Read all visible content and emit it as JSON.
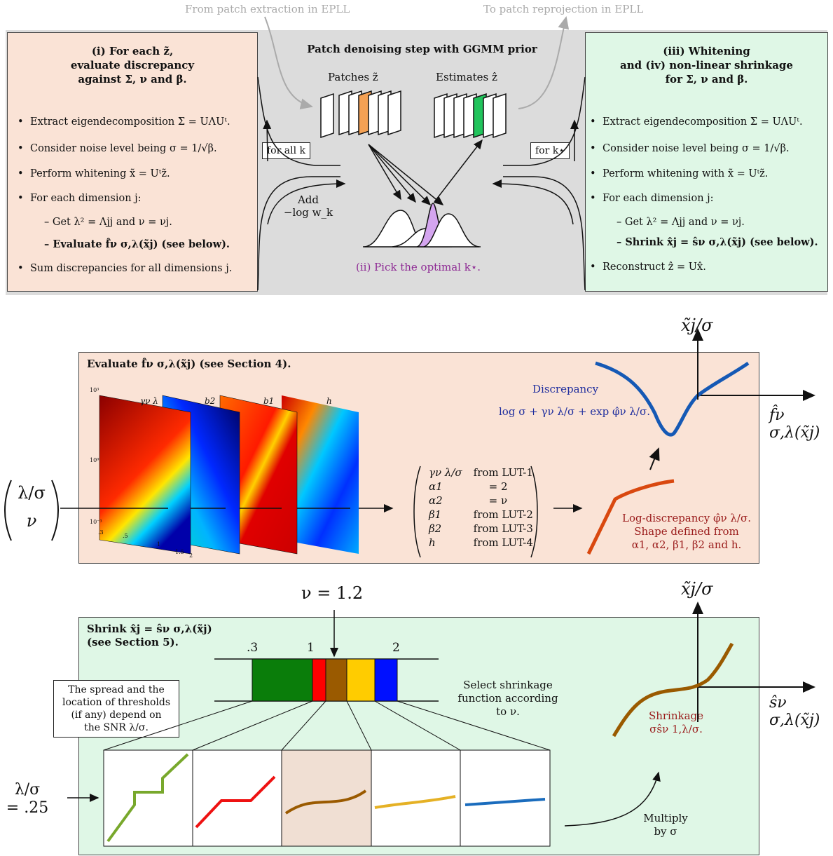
{
  "top": {
    "from_label": "From patch extraction in EPLL",
    "to_label": "To patch reprojection in EPLL",
    "center_title": "Patch denoising step with GGMM prior",
    "patches_label": "Patches z̃",
    "estimates_label": "Estimates ẑ",
    "for_all_k": "for all k",
    "for_k_star": "for k⋆",
    "add_label_1": "Add",
    "add_label_2": "−log w_k",
    "pick_optimal": "(ii) Pick the optimal k⋆."
  },
  "left_panel": {
    "heading": [
      "(i) For each z̃,",
      "evaluate discrepancy",
      "against Σ, ν and β."
    ],
    "bullets": [
      "Extract eigendecomposition Σ = UΛUᵗ.",
      "Consider noise level being σ = 1/√β.",
      "Perform whitening x̃ = Uᵗz̃.",
      "For each dimension j:"
    ],
    "sub_bullets": [
      "Get λ² = Λjj and ν = νj.",
      "Evaluate f̂ν σ,λ(x̃j) (see below)."
    ],
    "last_bullet": "Sum discrepancies for all dimensions j."
  },
  "right_panel": {
    "heading": [
      "(iii) Whitening",
      "and (iv) non-linear shrinkage",
      "for Σ, ν and β."
    ],
    "bullets": [
      "Extract eigendecomposition Σ = UΛUᵗ.",
      "Consider noise level being σ = 1/√β.",
      "Perform whitening with x̃ = Uᵗz̃.",
      "For each dimension j:"
    ],
    "sub_bullets": [
      "Get λ² = Λjj and ν = νj.",
      "Shrink x̂j = ŝν σ,λ(x̃j) (see below)."
    ],
    "last_bullet": "Reconstruct ẑ = Ux̂."
  },
  "evaluate_panel": {
    "title": "Evaluate f̂ν σ,λ(x̃j) (see Section 4).",
    "input_top": "λ/σ",
    "input_bottom": "ν",
    "map_labels": [
      "γν λ",
      "b2",
      "b1",
      "h"
    ],
    "tick_labels": [
      ".3",
      ".5",
      "1",
      "1.5",
      "2"
    ],
    "y_ticks": [
      "10³",
      "10⁰",
      "10⁻³"
    ],
    "lut_rows": [
      {
        "name": "γν λ/σ",
        "src": "from LUT-1"
      },
      {
        "name": "α1",
        "src": "= 2"
      },
      {
        "name": "α2",
        "src": "= ν"
      },
      {
        "name": "β1",
        "src": "from LUT-2"
      },
      {
        "name": "β2",
        "src": "from LUT-3"
      },
      {
        "name": "h",
        "src": "from LUT-4"
      }
    ],
    "discrepancy_label": "Discrepancy",
    "discrepancy_formula": "log σ + γν λ/σ + exp φ̂ν λ/σ.",
    "logdisc_label_1": "Log-discrepancy φ̂ν λ/σ.",
    "logdisc_label_2": "Shape defined from",
    "logdisc_label_3": "α1, α2, β1, β2 and h.",
    "axis_y_label": "x̃j/σ",
    "axis_x_label": "f̂ν σ,λ(x̃j)"
  },
  "shrink_panel": {
    "title_1": "Shrink x̂j = ŝν σ,λ(x̃j)",
    "title_2": "(see Section 5).",
    "nu_label": "ν = 1.2",
    "scale_ticks": [
      ".3",
      "1",
      "2"
    ],
    "select_text": [
      "Select shrinkage",
      "function according",
      "to ν."
    ],
    "note": [
      "The spread and the",
      "location of thresholds",
      "(if any) depend on",
      "the SNR λ/σ."
    ],
    "lambda_label_1": "λ/σ",
    "lambda_label_2": "= .25",
    "multiply_1": "Multiply",
    "multiply_2": "by σ",
    "shrinkage_label_1": "Shrinkage",
    "shrinkage_label_2": "σŝν 1,λ/σ.",
    "axis_y_label": "x̃j/σ",
    "axis_x_label": "ŝν σ,λ(x̃j)",
    "band_colors": [
      "#0a7d0a",
      "#ff0000",
      "#9a5a00",
      "#ffcc00",
      "#0010ff"
    ]
  }
}
